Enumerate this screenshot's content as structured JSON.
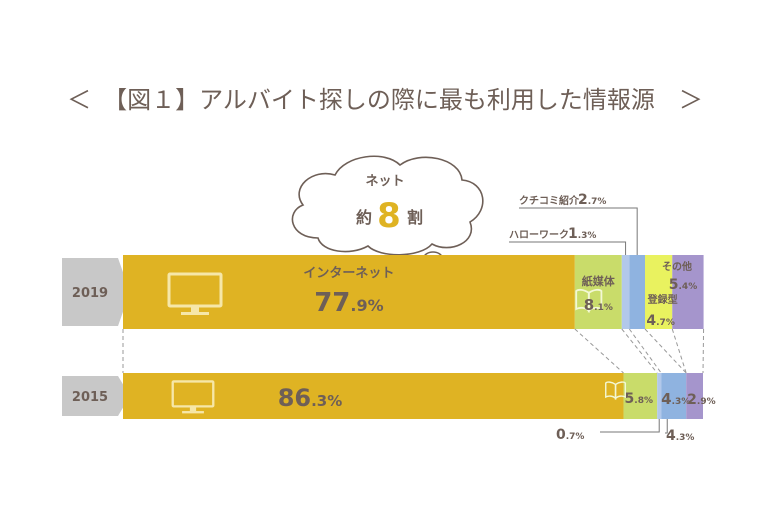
{
  "title": "＜　【図１】アルバイト探しの際に最も利用した情報源　＞",
  "callout": {
    "line1": "ネット",
    "prefix": "約",
    "number": "8",
    "suffix": "割"
  },
  "colors": {
    "internet": "#dfb323",
    "print": "#c9dc6a",
    "hellowork": "#b2c8ea",
    "kuchikomi": "#8fb3e0",
    "registration": "#e9f25f",
    "other": "#a595cc",
    "year_tag": "#c8c8c8",
    "text": "#6e5f57"
  },
  "chart_data": {
    "type": "bar",
    "stacked": true,
    "orientation": "horizontal",
    "categories": [
      "2019",
      "2015"
    ],
    "series": [
      {
        "name": "インターネット",
        "values": [
          77.9,
          86.3
        ],
        "labels": [
          "77.9%",
          "86.3%"
        ],
        "icon": "monitor-icon"
      },
      {
        "name": "紙媒体",
        "values": [
          8.1,
          5.8
        ],
        "labels": [
          "8.1%",
          "5.8%"
        ],
        "icon": "book-icon"
      },
      {
        "name": "ハローワーク",
        "values": [
          1.3,
          0.7
        ],
        "labels": [
          "1.3%",
          "0.7%"
        ]
      },
      {
        "name": "クチコミ紹介",
        "values": [
          2.7,
          4.3
        ],
        "labels": [
          "2.7%",
          "4.3%"
        ]
      },
      {
        "name": "登録型",
        "values": [
          4.7,
          0
        ],
        "labels": [
          "4.7%",
          ""
        ]
      },
      {
        "name": "その他",
        "values": [
          5.4,
          2.9
        ],
        "labels": [
          "5.4%",
          "2.9%"
        ]
      }
    ],
    "xlim": [
      0,
      100
    ],
    "legend": "none"
  }
}
